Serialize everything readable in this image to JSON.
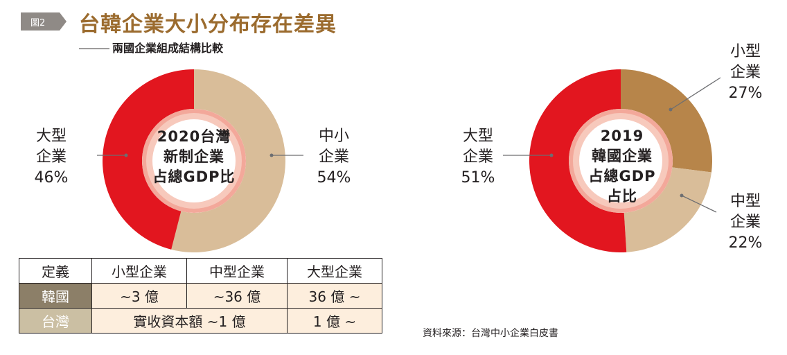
{
  "header": {
    "badge": "圖2",
    "title": "台韓企業大小分布存在差異",
    "subtitle": "兩國企業組成結構比較"
  },
  "colors": {
    "red": "#e2161f",
    "tan": "#d9bd99",
    "brown": "#b7854a",
    "ring": "#f3a89a",
    "title_gold": "#9b6b2e"
  },
  "chart_data": [
    {
      "type": "pie",
      "donut": true,
      "center_label": [
        "2020台灣",
        "新制企業",
        "占總GDP比"
      ],
      "slices": [
        {
          "label": [
            "中小",
            "企業"
          ],
          "value": 54,
          "display": "54%",
          "color": "#d9bd99"
        },
        {
          "label": [
            "大型",
            "企業"
          ],
          "value": 46,
          "display": "46%",
          "color": "#e2161f"
        }
      ]
    },
    {
      "type": "pie",
      "donut": true,
      "center_label": [
        "2019",
        "韓國企業",
        "占總GDP",
        "占比"
      ],
      "slices": [
        {
          "label": [
            "小型",
            "企業"
          ],
          "value": 27,
          "display": "27%",
          "color": "#b7854a"
        },
        {
          "label": [
            "中型",
            "企業"
          ],
          "value": 22,
          "display": "22%",
          "color": "#d9bd99"
        },
        {
          "label": [
            "大型",
            "企業"
          ],
          "value": 51,
          "display": "51%",
          "color": "#e2161f"
        }
      ]
    }
  ],
  "table": {
    "headers": [
      "定義",
      "小型企業",
      "中型企業",
      "大型企業"
    ],
    "rows": [
      {
        "label": "韓國",
        "cells": [
          "~3 億",
          "~36 億",
          "36 億 ~"
        ]
      },
      {
        "label": "台灣",
        "cells": [
          "實收資本額 ~1 億",
          "1 億 ~"
        ]
      }
    ]
  },
  "source": "資料來源：台灣中小企業白皮書"
}
